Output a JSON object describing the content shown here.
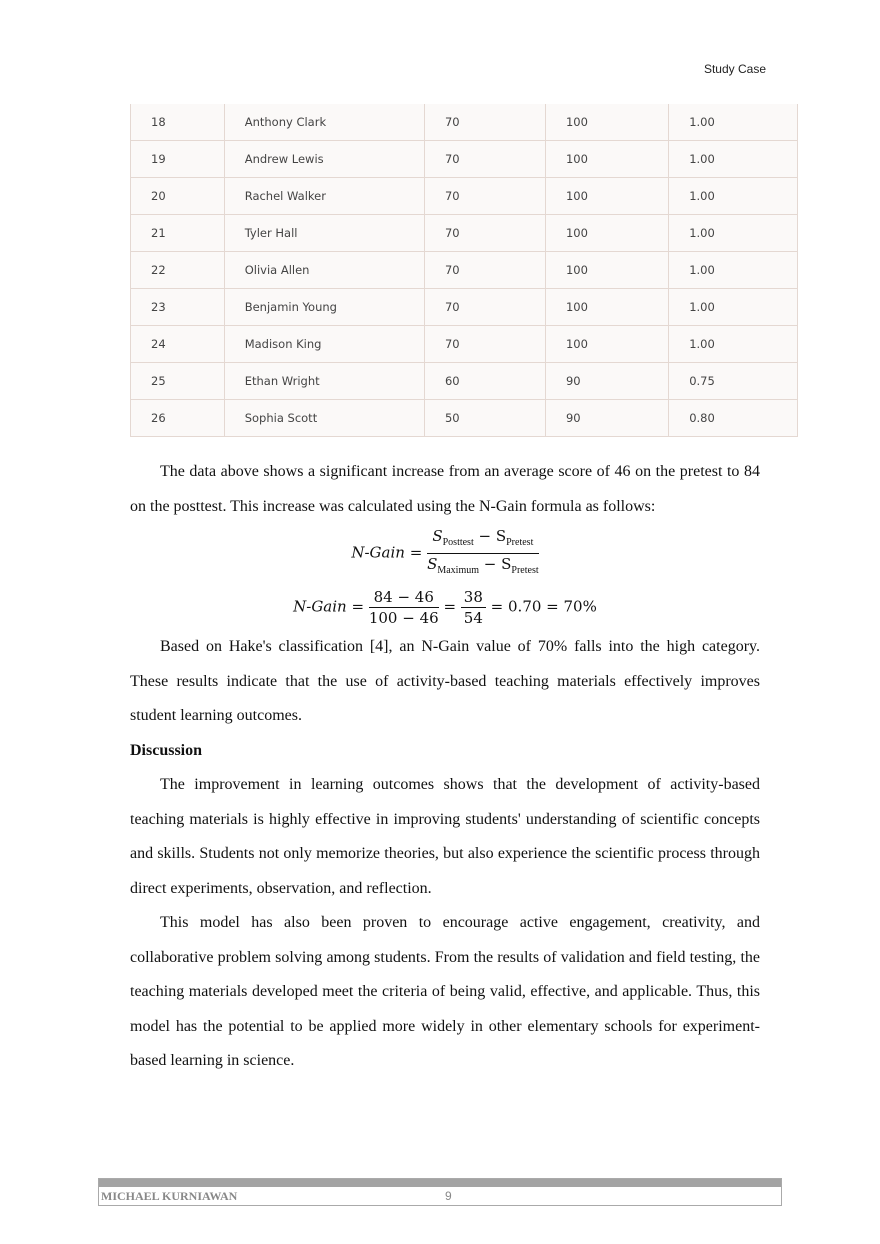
{
  "header": "Study Case",
  "table": [
    [
      "18",
      "Anthony Clark",
      "70",
      "100",
      "1.00"
    ],
    [
      "19",
      "Andrew Lewis",
      "70",
      "100",
      "1.00"
    ],
    [
      "20",
      "Rachel Walker",
      "70",
      "100",
      "1.00"
    ],
    [
      "21",
      "Tyler Hall",
      "70",
      "100",
      "1.00"
    ],
    [
      "22",
      "Olivia Allen",
      "70",
      "100",
      "1.00"
    ],
    [
      "23",
      "Benjamin Young",
      "70",
      "100",
      "1.00"
    ],
    [
      "24",
      "Madison King",
      "70",
      "100",
      "1.00"
    ],
    [
      "25",
      "Ethan Wright",
      "60",
      "90",
      "0.75"
    ],
    [
      "26",
      "Sophia Scott",
      "50",
      "90",
      "0.80"
    ]
  ],
  "p1": "The data above shows a significant increase from an average score of 46 on the pretest to 84 on the posttest. This increase was calculated using the N-Gain formula as follows:",
  "eq1": {
    "lhs": "N-Gain =",
    "num_a": "S",
    "num_a_sub": "Posttest",
    "num_b": " − S",
    "num_b_sub": "Pretest",
    "den_a": "S",
    "den_a_sub": "Maximum",
    "den_b": " − S",
    "den_b_sub": "Pretest"
  },
  "eq2": {
    "lhs": "N-Gain =",
    "f1_num": "84 − 46",
    "f1_den": "100 − 46",
    "eq": "=",
    "f2_num": "38",
    "f2_den": "54",
    "rest": "= 0.70 = 70%"
  },
  "p2": "Based on Hake's classification [4], an N-Gain value of 70% falls into the high category. These results indicate that the use of activity-based teaching materials effectively improves student learning outcomes.",
  "heading": "Discussion",
  "p3": "The improvement in learning outcomes shows that the development of activity-based teaching materials is highly effective in improving students' understanding of scientific concepts and skills. Students not only memorize theories, but also experience the scientific process through direct experiments, observation, and reflection.",
  "p4": "This model has also been proven to encourage active engagement, creativity, and collaborative problem solving among students. From the results of validation and field testing, the teaching materials developed meet the criteria of being valid, effective, and applicable. Thus, this model has the potential to be applied more widely in other elementary schools for experiment-based learning in science.",
  "footer": {
    "author": "MICHAEL KURNIAWAN",
    "page": "9"
  }
}
